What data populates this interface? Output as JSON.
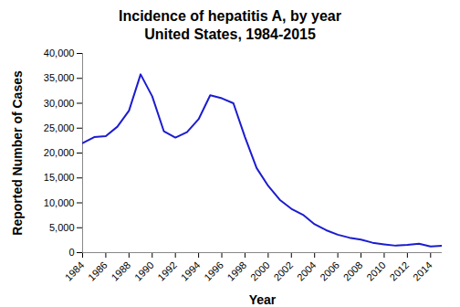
{
  "chart_data": {
    "type": "line",
    "title": "Incidence of hepatitis A, by year",
    "subtitle": "United States, 1984-2015",
    "x_label": "Year",
    "y_label": "Reported Number of Cases",
    "x": [
      1984,
      1985,
      1986,
      1987,
      1988,
      1989,
      1990,
      1991,
      1992,
      1993,
      1994,
      1995,
      1996,
      1997,
      1998,
      1999,
      2000,
      2001,
      2002,
      2003,
      2004,
      2005,
      2006,
      2007,
      2008,
      2009,
      2010,
      2011,
      2012,
      2013,
      2014,
      2015
    ],
    "values": [
      22000,
      23200,
      23400,
      25300,
      28500,
      35800,
      31400,
      24400,
      23100,
      24200,
      26800,
      31600,
      31000,
      30000,
      23200,
      17000,
      13400,
      10600,
      8800,
      7600,
      5700,
      4500,
      3600,
      3000,
      2600,
      1990,
      1670,
      1400,
      1560,
      1780,
      1240,
      1390
    ],
    "color": "#1c1cd0",
    "marker": "none",
    "line_style": "solid",
    "grid": false,
    "xlim": [
      1984,
      2015
    ],
    "xticks": [
      1984,
      1986,
      1988,
      1990,
      1992,
      1994,
      1996,
      1998,
      2000,
      2002,
      2004,
      2006,
      2008,
      2010,
      2012,
      2014
    ],
    "ylim": [
      0,
      40000
    ],
    "yticks": [
      0,
      {
        "value": 5000,
        "label": "5,000"
      },
      {
        "value": 10000,
        "label": "10,000"
      },
      {
        "value": 15000,
        "label": "15,000"
      },
      {
        "value": 20000,
        "label": "20,000"
      },
      {
        "value": 25000,
        "label": "25,000"
      },
      {
        "value": 30000,
        "label": "30,000"
      },
      {
        "value": 35000,
        "label": "35,000"
      },
      {
        "value": 40000,
        "label": "40,000"
      }
    ]
  }
}
